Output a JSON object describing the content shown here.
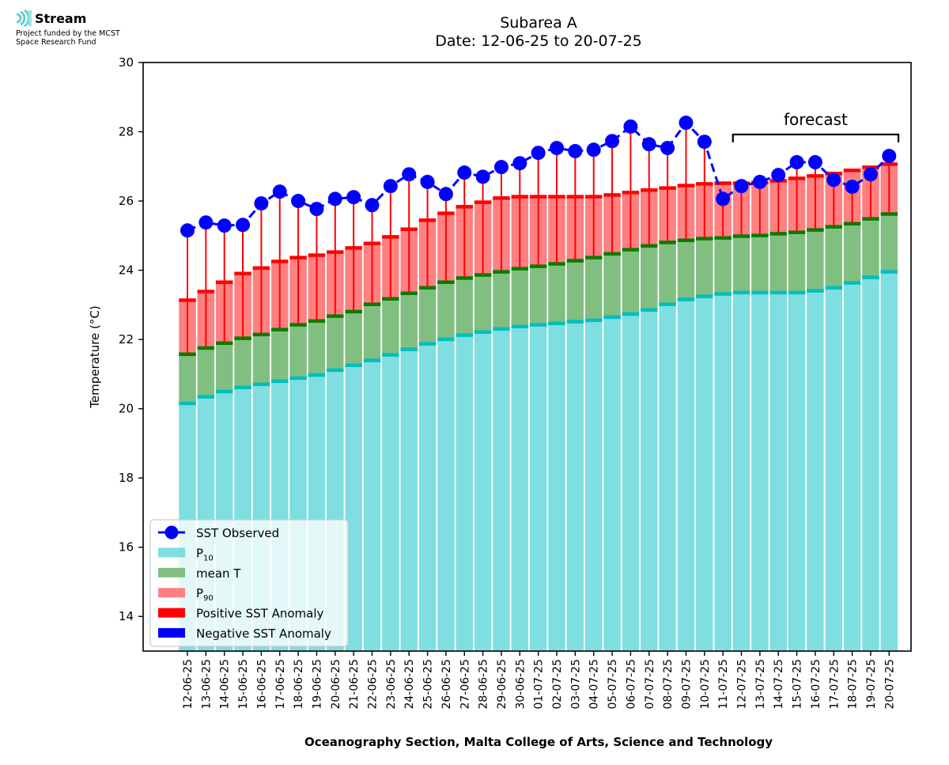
{
  "logo": {
    "brand": "Stream",
    "line1": "Project funded by the MCST",
    "line2": "Space Research Fund",
    "icon": "wave-signal-icon"
  },
  "colors": {
    "p10": "#7fdedf",
    "p10_edge": "#00bfbf",
    "mean": "#80bf80",
    "mean_edge": "#007f00",
    "p90": "#ff8080",
    "p90_edge": "#ff0000",
    "positive_anomaly": "#ff0000",
    "negative_anomaly": "#0000ff",
    "observed": "#0000ff"
  },
  "chart_data": {
    "type": "bar",
    "title": "Subarea A",
    "subtitle": "Date: 12-06-25 to 20-07-25",
    "xlabel": "Oceanography Section, Malta College of Arts, Science and Technology",
    "ylabel": "Temperature (°C)",
    "ylim": [
      13.0,
      30.0
    ],
    "yticks": [
      14,
      16,
      18,
      20,
      22,
      24,
      26,
      28,
      30
    ],
    "grid": false,
    "legend_position": "lower-left",
    "annotation": {
      "text": "forecast",
      "from": "12-07-25",
      "to": "20-07-25"
    },
    "categories": [
      "12-06-25",
      "13-06-25",
      "14-06-25",
      "15-06-25",
      "16-06-25",
      "17-06-25",
      "18-06-25",
      "19-06-25",
      "20-06-25",
      "21-06-25",
      "22-06-25",
      "23-06-25",
      "24-06-25",
      "25-06-25",
      "26-06-25",
      "27-06-25",
      "28-06-25",
      "29-06-25",
      "30-06-25",
      "01-07-25",
      "02-07-25",
      "03-07-25",
      "04-07-25",
      "05-07-25",
      "06-07-25",
      "07-07-25",
      "08-07-25",
      "09-07-25",
      "10-07-25",
      "11-07-25",
      "12-07-25",
      "13-07-25",
      "14-07-25",
      "15-07-25",
      "16-07-25",
      "17-07-25",
      "18-07-25",
      "19-07-25",
      "20-07-25"
    ],
    "series": [
      {
        "name": "P10",
        "legend_label": "P",
        "legend_sub": "10",
        "values": [
          20.16,
          20.35,
          20.5,
          20.62,
          20.71,
          20.8,
          20.89,
          20.98,
          21.12,
          21.26,
          21.4,
          21.56,
          21.72,
          21.88,
          22.01,
          22.13,
          22.22,
          22.31,
          22.38,
          22.43,
          22.47,
          22.52,
          22.56,
          22.65,
          22.74,
          22.86,
          23.02,
          23.16,
          23.25,
          23.32,
          23.36,
          23.36,
          23.36,
          23.36,
          23.41,
          23.5,
          23.64,
          23.8,
          23.96
        ]
      },
      {
        "name": "mean T",
        "legend_label": "mean T",
        "legend_sub": "",
        "values": [
          21.58,
          21.76,
          21.9,
          22.04,
          22.15,
          22.29,
          22.43,
          22.54,
          22.68,
          22.81,
          23.02,
          23.18,
          23.34,
          23.5,
          23.66,
          23.78,
          23.87,
          23.96,
          24.05,
          24.12,
          24.19,
          24.28,
          24.37,
          24.48,
          24.6,
          24.71,
          24.81,
          24.87,
          24.92,
          24.94,
          24.99,
          25.01,
          25.06,
          25.1,
          25.17,
          25.26,
          25.35,
          25.49,
          25.63
        ]
      },
      {
        "name": "P90",
        "legend_label": "P",
        "legend_sub": "90",
        "values": [
          23.14,
          23.39,
          23.66,
          23.91,
          24.07,
          24.26,
          24.37,
          24.44,
          24.53,
          24.65,
          24.78,
          24.97,
          25.19,
          25.45,
          25.65,
          25.84,
          25.97,
          26.09,
          26.13,
          26.13,
          26.13,
          26.13,
          26.13,
          26.18,
          26.25,
          26.32,
          26.38,
          26.45,
          26.5,
          26.52,
          26.52,
          26.54,
          26.59,
          26.66,
          26.73,
          26.8,
          26.89,
          26.98,
          27.07
        ]
      },
      {
        "name": "SST Observed",
        "legend_label": "SST Observed",
        "legend_sub": "",
        "values": [
          25.15,
          25.38,
          25.29,
          25.31,
          25.93,
          26.27,
          26.0,
          25.77,
          26.06,
          26.11,
          25.88,
          26.43,
          26.77,
          26.55,
          26.2,
          26.82,
          26.7,
          26.98,
          27.09,
          27.39,
          27.53,
          27.44,
          27.48,
          27.73,
          28.15,
          27.64,
          27.53,
          28.26,
          27.71,
          26.06,
          26.43,
          26.55,
          26.75,
          27.12,
          27.12,
          26.61,
          26.41,
          26.77,
          27.3
        ]
      }
    ],
    "legend": [
      {
        "label": "SST Observed",
        "sub": "",
        "kind": "line-marker"
      },
      {
        "label": "P",
        "sub": "10",
        "kind": "patch-p10"
      },
      {
        "label": "mean T",
        "sub": "",
        "kind": "patch-mean"
      },
      {
        "label": "P",
        "sub": "90",
        "kind": "patch-p90"
      },
      {
        "label": "Positive SST Anomaly",
        "sub": "",
        "kind": "patch-pos"
      },
      {
        "label": "Negative SST Anomaly",
        "sub": "",
        "kind": "patch-neg"
      }
    ]
  }
}
